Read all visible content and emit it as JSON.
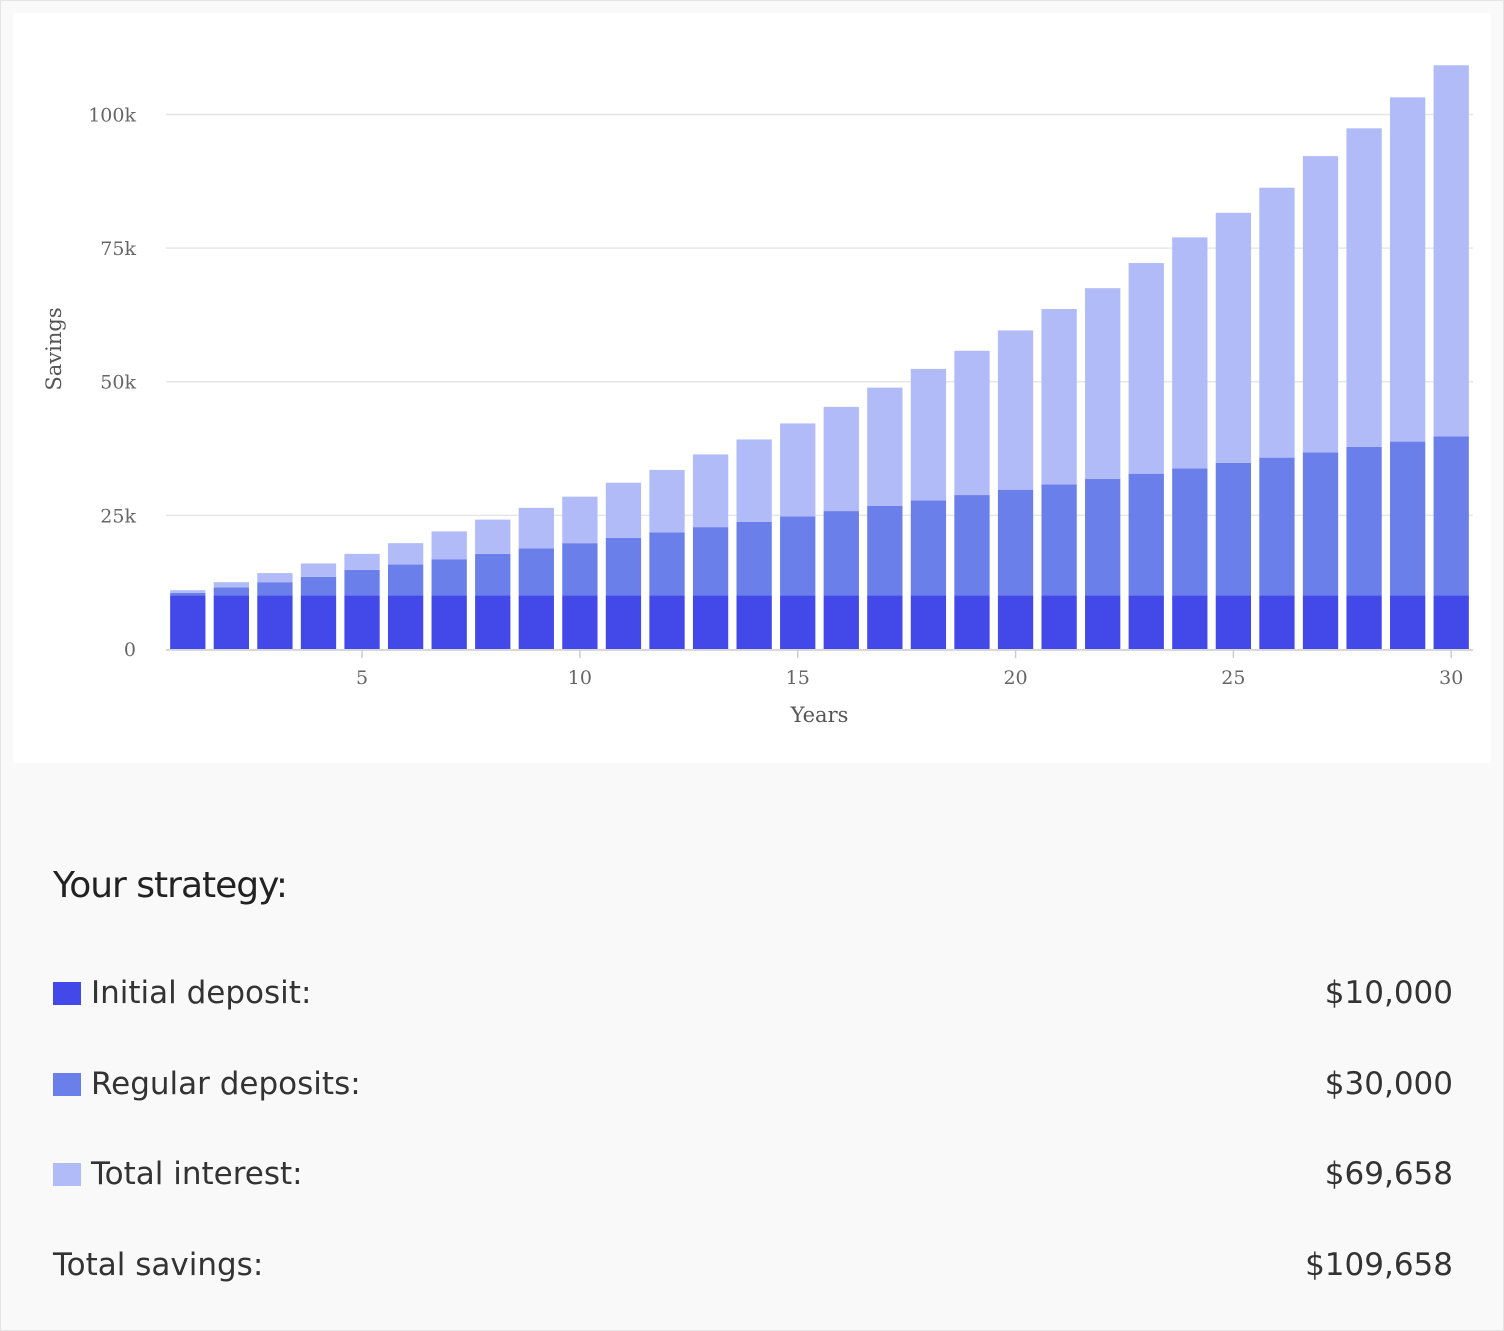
{
  "chart_data": {
    "type": "bar",
    "stacked": true,
    "xlabel": "Years",
    "ylabel": "Savings",
    "ylim": [
      0,
      110000
    ],
    "ytick_values": [
      0,
      25000,
      50000,
      75000,
      100000
    ],
    "ytick_labels": [
      "0",
      "25k",
      "50k",
      "75k",
      "100k"
    ],
    "xtick_values": [
      5,
      10,
      15,
      20,
      25,
      30
    ],
    "xtick_labels": [
      "5",
      "10",
      "15",
      "20",
      "25",
      "30"
    ],
    "grid": true,
    "legend": "none",
    "categories": [
      1,
      2,
      3,
      4,
      5,
      6,
      7,
      8,
      9,
      10,
      11,
      12,
      13,
      14,
      15,
      16,
      17,
      18,
      19,
      20,
      21,
      22,
      23,
      24,
      25,
      26,
      27,
      28,
      29,
      30
    ],
    "series": [
      {
        "color": "#4349e9",
        "values": [
          10000,
          10000,
          10000,
          10000,
          10000,
          10000,
          10000,
          10000,
          10000,
          10000,
          10000,
          10000,
          10000,
          10000,
          10000,
          10000,
          10000,
          10000,
          10000,
          10000,
          10000,
          10000,
          10000,
          10000,
          10000,
          10000,
          10000,
          10000,
          10000,
          10000
        ]
      },
      {
        "color": "#6b7fea",
        "values": [
          500,
          1500,
          2500,
          3500,
          4800,
          5800,
          6800,
          7800,
          8800,
          9800,
          10800,
          11800,
          12800,
          13800,
          14800,
          15800,
          16800,
          17800,
          18800,
          19800,
          20800,
          21800,
          22800,
          23800,
          24800,
          25800,
          26800,
          27800,
          28800,
          29800
        ]
      },
      {
        "color": "#b1bbf7",
        "values": [
          500,
          1000,
          1700,
          2500,
          3000,
          4000,
          5200,
          6400,
          7600,
          8700,
          10300,
          11700,
          13600,
          15400,
          17400,
          19500,
          22100,
          24600,
          27000,
          29800,
          32800,
          35700,
          39400,
          43200,
          46800,
          50500,
          55400,
          59600,
          64400,
          69400
        ]
      }
    ]
  },
  "strategy": {
    "title": "Your strategy:",
    "rows": [
      {
        "label": "Initial deposit:",
        "value": "$10,000",
        "color": "#4349e9"
      },
      {
        "label": "Regular deposits:",
        "value": "$30,000",
        "color": "#6b7fea"
      },
      {
        "label": "Total interest:",
        "value": "$69,658",
        "color": "#b1bbf7"
      }
    ],
    "total": {
      "label": "Total savings:",
      "value": "$109,658"
    }
  }
}
